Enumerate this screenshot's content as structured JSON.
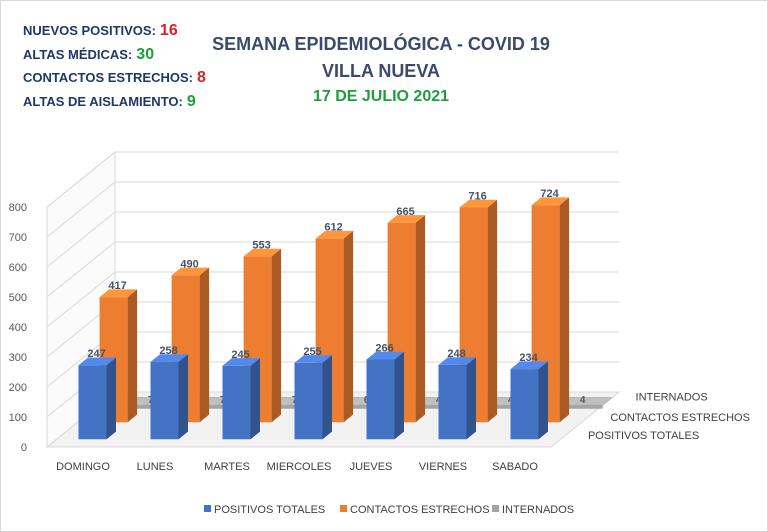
{
  "stats": [
    {
      "label": "NUEVOS POSITIVOS:",
      "value": "16",
      "color": "#e02020"
    },
    {
      "label": "ALTAS MÉDICAS:",
      "value": "30",
      "color": "#1e9e3e"
    },
    {
      "label": "CONTACTOS ESTRECHOS:",
      "value": "8",
      "color": "#e02020"
    },
    {
      "label": "ALTAS DE AISLAMIENTO:",
      "value": "9",
      "color": "#1e9e3e"
    }
  ],
  "titles": {
    "line1": "SEMANA EPIDEMIOLÓGICA - COVID 19",
    "line2": "VILLA NUEVA",
    "date": "17 DE JULIO 2021"
  },
  "colors": {
    "positivos": "#4472c4",
    "contactos": "#ed7d31",
    "internados": "#a5a5a5",
    "date": "#1e9e3e"
  },
  "chart_data": {
    "type": "bar",
    "categories": [
      "DOMINGO",
      "LUNES",
      "MARTES",
      "MIERCOLES",
      "JUEVES",
      "VIERNES",
      "SABADO"
    ],
    "series": [
      {
        "name": "POSITIVOS TOTALES",
        "values": [
          247,
          258,
          245,
          255,
          266,
          248,
          234
        ]
      },
      {
        "name": "CONTACTOS ESTRECHOS",
        "values": [
          417,
          490,
          553,
          612,
          665,
          716,
          724
        ]
      },
      {
        "name": "INTERNADOS",
        "values": [
          7,
          7,
          7,
          6,
          4,
          4,
          4
        ]
      }
    ],
    "yticks": [
      0,
      100,
      200,
      300,
      400,
      500,
      600,
      700,
      800
    ],
    "ylim": [
      0,
      800
    ],
    "depth_labels": [
      "INTERNADOS",
      "CONTACTOS ESTRECHOS",
      "POSITIVOS TOTALES"
    ],
    "legend": [
      "POSITIVOS TOTALES",
      "CONTACTOS ESTRECHOS",
      "INTERNADOS"
    ],
    "legend_position": "bottom",
    "grid": true
  }
}
